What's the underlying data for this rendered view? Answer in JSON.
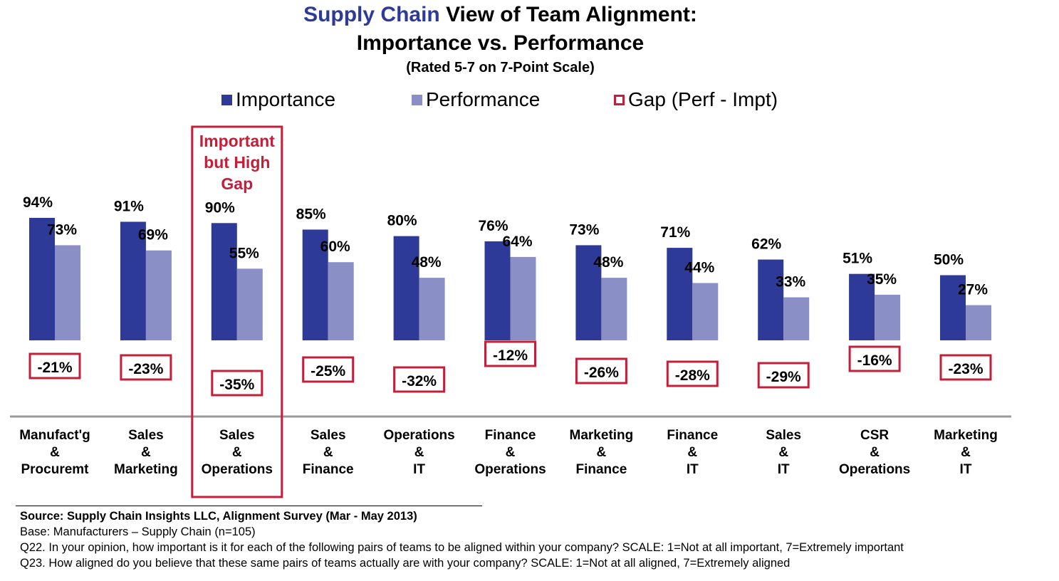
{
  "title": {
    "line1_accent": "Supply Chain",
    "line1_rest": " View of Team Alignment:",
    "line2": "Importance vs. Performance",
    "line3": "(Rated 5-7 on 7-Point Scale)"
  },
  "legend": {
    "importance": "Importance",
    "performance": "Performance",
    "gap": "Gap (Perf - Impt)"
  },
  "colors": {
    "importance": "#2e3a97",
    "performance": "#8a90c5",
    "gap_border": "#c0203a",
    "highlight": "#c0203a",
    "title_accent": "#2e3a97",
    "baseline": "#9a9a9a"
  },
  "chart_data": {
    "type": "bar",
    "categories": [
      [
        "Manufact'g",
        "&",
        "Procuremt"
      ],
      [
        "Sales",
        "&",
        "Marketing"
      ],
      [
        "Sales",
        "&",
        "Operations"
      ],
      [
        "Sales",
        "&",
        "Finance"
      ],
      [
        "Operations",
        "&",
        "IT"
      ],
      [
        "Finance",
        "&",
        "Operations"
      ],
      [
        "Marketing",
        "&",
        "Finance"
      ],
      [
        "Finance",
        "&",
        "IT"
      ],
      [
        "Sales",
        "&",
        "IT"
      ],
      [
        "CSR",
        "&",
        "Operations"
      ],
      [
        "Marketing",
        "&",
        "IT"
      ]
    ],
    "series": [
      {
        "name": "Importance",
        "values": [
          94,
          91,
          90,
          85,
          80,
          76,
          73,
          71,
          62,
          51,
          50
        ]
      },
      {
        "name": "Performance",
        "values": [
          73,
          69,
          55,
          60,
          48,
          64,
          48,
          44,
          33,
          35,
          27
        ]
      },
      {
        "name": "Gap (Perf - Impt)",
        "values": [
          -21,
          -23,
          -35,
          -25,
          -32,
          -12,
          -26,
          -28,
          -29,
          -16,
          -23
        ]
      }
    ],
    "value_labels": {
      "importance": [
        "94%",
        "91%",
        "90%",
        "85%",
        "80%",
        "76%",
        "73%",
        "71%",
        "62%",
        "51%",
        "50%"
      ],
      "performance": [
        "73%",
        "69%",
        "55%",
        "60%",
        "48%",
        "64%",
        "48%",
        "44%",
        "33%",
        "35%",
        "27%"
      ],
      "gap": [
        "-21%",
        "-23%",
        "-35%",
        "-25%",
        "-32%",
        "-12%",
        "-26%",
        "-28%",
        "-29%",
        "-16%",
        "-23%"
      ]
    },
    "ylim": [
      0,
      100
    ],
    "grid": false,
    "legend_position": "top",
    "highlight": {
      "category_index": 2,
      "text": [
        "Important",
        "but High",
        "Gap"
      ]
    }
  },
  "footer": {
    "source": "Source:  Supply Chain Insights LLC, Alignment Survey  (Mar - May 2013)",
    "base": "Base:  Manufacturers   – Supply Chain (n=105)",
    "q22": "Q22. In your opinion, how important is it for each of the following pairs of teams to be aligned within your company?  SCALE:  1=Not at all important, 7=Extremely important",
    "q23": "Q23. How aligned do you believe that these same pairs of teams actually are with your company?  SCALE: 1=Not at all aligned, 7=Extremely aligned"
  }
}
